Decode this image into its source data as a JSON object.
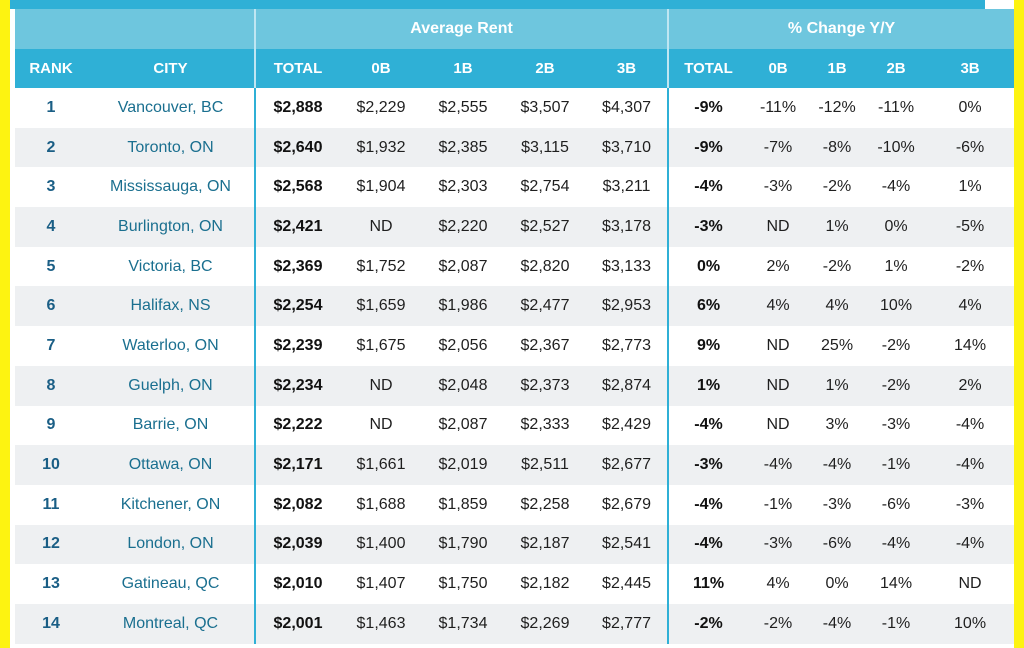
{
  "groups": {
    "average_rent": "Average Rent",
    "pct_change": "% Change Y/Y"
  },
  "columns": [
    "RANK",
    "CITY",
    "TOTAL",
    "0B",
    "1B",
    "2B",
    "3B",
    "TOTAL",
    "0B",
    "1B",
    "2B",
    "3B"
  ],
  "rows": [
    [
      "1",
      "Vancouver, BC",
      "$2,888",
      "$2,229",
      "$2,555",
      "$3,507",
      "$4,307",
      "-9%",
      "-11%",
      "-12%",
      "-11%",
      "0%"
    ],
    [
      "2",
      "Toronto, ON",
      "$2,640",
      "$1,932",
      "$2,385",
      "$3,115",
      "$3,710",
      "-9%",
      "-7%",
      "-8%",
      "-10%",
      "-6%"
    ],
    [
      "3",
      "Mississauga, ON",
      "$2,568",
      "$1,904",
      "$2,303",
      "$2,754",
      "$3,211",
      "-4%",
      "-3%",
      "-2%",
      "-4%",
      "1%"
    ],
    [
      "4",
      "Burlington, ON",
      "$2,421",
      "ND",
      "$2,220",
      "$2,527",
      "$3,178",
      "-3%",
      "ND",
      "1%",
      "0%",
      "-5%"
    ],
    [
      "5",
      "Victoria, BC",
      "$2,369",
      "$1,752",
      "$2,087",
      "$2,820",
      "$3,133",
      "0%",
      "2%",
      "-2%",
      "1%",
      "-2%"
    ],
    [
      "6",
      "Halifax, NS",
      "$2,254",
      "$1,659",
      "$1,986",
      "$2,477",
      "$2,953",
      "6%",
      "4%",
      "4%",
      "10%",
      "4%"
    ],
    [
      "7",
      "Waterloo, ON",
      "$2,239",
      "$1,675",
      "$2,056",
      "$2,367",
      "$2,773",
      "9%",
      "ND",
      "25%",
      "-2%",
      "14%"
    ],
    [
      "8",
      "Guelph, ON",
      "$2,234",
      "ND",
      "$2,048",
      "$2,373",
      "$2,874",
      "1%",
      "ND",
      "1%",
      "-2%",
      "2%"
    ],
    [
      "9",
      "Barrie, ON",
      "$2,222",
      "ND",
      "$2,087",
      "$2,333",
      "$2,429",
      "-4%",
      "ND",
      "3%",
      "-3%",
      "-4%"
    ],
    [
      "10",
      "Ottawa, ON",
      "$2,171",
      "$1,661",
      "$2,019",
      "$2,511",
      "$2,677",
      "-3%",
      "-4%",
      "-4%",
      "-1%",
      "-4%"
    ],
    [
      "11",
      "Kitchener, ON",
      "$2,082",
      "$1,688",
      "$1,859",
      "$2,258",
      "$2,679",
      "-4%",
      "-1%",
      "-3%",
      "-6%",
      "-3%"
    ],
    [
      "12",
      "London, ON",
      "$2,039",
      "$1,400",
      "$1,790",
      "$2,187",
      "$2,541",
      "-4%",
      "-3%",
      "-6%",
      "-4%",
      "-4%"
    ],
    [
      "13",
      "Gatineau, QC",
      "$2,010",
      "$1,407",
      "$1,750",
      "$2,182",
      "$2,445",
      "11%",
      "4%",
      "0%",
      "14%",
      "ND"
    ],
    [
      "14",
      "Montreal, QC",
      "$2,001",
      "$1,463",
      "$1,734",
      "$2,269",
      "$2,777",
      "-2%",
      "-2%",
      "-4%",
      "-1%",
      "10%"
    ]
  ],
  "colors": {
    "header_dark": "#2fb0d6",
    "header_light": "#6ec6de",
    "frame": "#fdf311",
    "stripe": "#eef0f2"
  }
}
